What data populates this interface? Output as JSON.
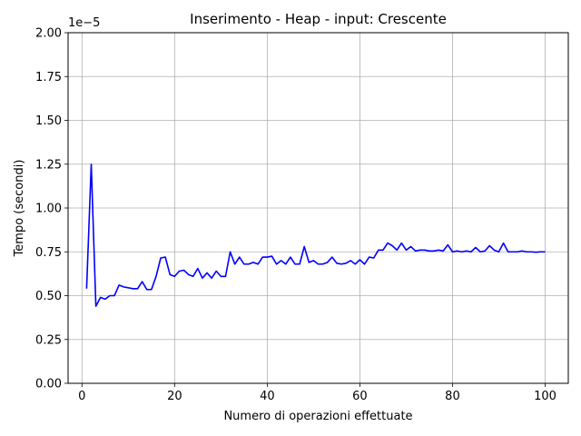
{
  "chart_data": {
    "type": "line",
    "title": "Inserimento - Heap - input: Crescente",
    "xlabel": "Numero di operazioni effettuate",
    "ylabel": "Tempo (secondi)",
    "scale_label": "1e−5",
    "xlim": [
      -3,
      105
    ],
    "ylim": [
      0,
      2.0
    ],
    "x_ticks": [
      0,
      20,
      40,
      60,
      80,
      100
    ],
    "x_tick_labels": [
      "0",
      "20",
      "40",
      "60",
      "80",
      "100"
    ],
    "y_ticks": [
      0,
      0.25,
      0.5,
      0.75,
      1.0,
      1.25,
      1.5,
      1.75,
      2.0
    ],
    "y_tick_labels": [
      "0.00",
      "0.25",
      "0.50",
      "0.75",
      "1.00",
      "1.25",
      "1.50",
      "1.75",
      "2.00"
    ],
    "grid": true,
    "series": [
      {
        "color": "#0000ff",
        "x": [
          1,
          2,
          3,
          4,
          5,
          6,
          7,
          8,
          9,
          10,
          11,
          12,
          13,
          14,
          15,
          16,
          17,
          18,
          19,
          20,
          21,
          22,
          23,
          24,
          25,
          26,
          27,
          28,
          29,
          30,
          31,
          32,
          33,
          34,
          35,
          36,
          37,
          38,
          39,
          40,
          41,
          42,
          43,
          44,
          45,
          46,
          47,
          48,
          49,
          50,
          51,
          52,
          53,
          54,
          55,
          56,
          57,
          58,
          59,
          60,
          61,
          62,
          63,
          64,
          65,
          66,
          67,
          68,
          69,
          70,
          71,
          72,
          73,
          74,
          75,
          76,
          77,
          78,
          79,
          80,
          81,
          82,
          83,
          84,
          85,
          86,
          87,
          88,
          89,
          90,
          91,
          92,
          93,
          94,
          95,
          96,
          97,
          98,
          99,
          100
        ],
        "y": [
          0.54,
          1.25,
          0.44,
          0.49,
          0.48,
          0.5,
          0.5,
          0.56,
          0.55,
          0.545,
          0.54,
          0.54,
          0.58,
          0.535,
          0.535,
          0.61,
          0.715,
          0.72,
          0.62,
          0.61,
          0.64,
          0.645,
          0.62,
          0.61,
          0.655,
          0.6,
          0.63,
          0.6,
          0.64,
          0.61,
          0.61,
          0.75,
          0.68,
          0.72,
          0.68,
          0.68,
          0.69,
          0.68,
          0.72,
          0.72,
          0.725,
          0.68,
          0.7,
          0.68,
          0.72,
          0.68,
          0.68,
          0.78,
          0.69,
          0.7,
          0.68,
          0.68,
          0.69,
          0.72,
          0.685,
          0.68,
          0.685,
          0.7,
          0.68,
          0.705,
          0.68,
          0.72,
          0.715,
          0.76,
          0.76,
          0.8,
          0.785,
          0.76,
          0.8,
          0.76,
          0.78,
          0.755,
          0.76,
          0.76,
          0.755,
          0.755,
          0.76,
          0.755,
          0.79,
          0.75,
          0.755,
          0.75,
          0.755,
          0.75,
          0.775,
          0.75,
          0.755,
          0.785,
          0.76,
          0.75,
          0.8,
          0.75,
          0.75,
          0.75,
          0.755,
          0.75,
          0.75,
          0.748,
          0.75,
          0.75
        ]
      }
    ]
  }
}
